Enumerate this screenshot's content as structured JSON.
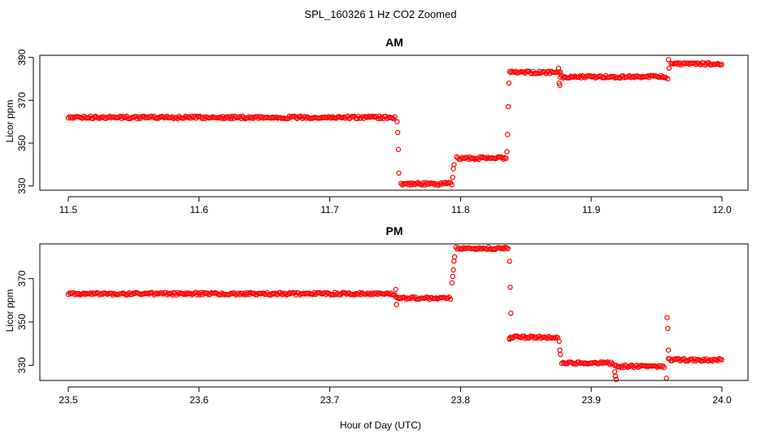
{
  "figure": {
    "title": "SPL_160326  1 Hz CO2 Zoomed",
    "xlabel": "Hour of Day (UTC)"
  },
  "chart_data": [
    {
      "type": "scatter",
      "title": "AM",
      "xlabel": "",
      "ylabel": "Licor ppm",
      "xlim": [
        11.5,
        12.0
      ],
      "ylim": [
        328,
        391
      ],
      "xticks": [
        "11.5",
        "11.6",
        "11.7",
        "11.8",
        "11.9",
        "12.0"
      ],
      "yticks": [
        "330",
        "350",
        "370",
        "390"
      ],
      "marker_color": "#ff0000",
      "grid": false,
      "series": [
        {
          "segments": [
            {
              "x": [
                11.5,
                11.7505
              ],
              "y": 362
            },
            {
              "x": [
                11.7545,
                11.7935
              ],
              "y": 331
            },
            {
              "x": [
                11.797,
                11.835
              ],
              "y": 343
            },
            {
              "x": [
                11.8375,
                11.877
              ],
              "y": 383
            },
            {
              "x": [
                11.8765,
                11.958
              ],
              "y": 381
            },
            {
              "x": [
                11.961,
                12.0
              ],
              "y": 387
            }
          ],
          "points": [
            {
              "x": 11.7515,
              "y": 360
            },
            {
              "x": 11.752,
              "y": 355
            },
            {
              "x": 11.7525,
              "y": 347
            },
            {
              "x": 11.7528,
              "y": 336
            },
            {
              "x": 11.794,
              "y": 334
            },
            {
              "x": 11.7945,
              "y": 338
            },
            {
              "x": 11.795,
              "y": 340
            },
            {
              "x": 11.8355,
              "y": 346
            },
            {
              "x": 11.836,
              "y": 354
            },
            {
              "x": 11.8365,
              "y": 367
            },
            {
              "x": 11.837,
              "y": 378
            },
            {
              "x": 11.875,
              "y": 385
            },
            {
              "x": 11.8755,
              "y": 378
            },
            {
              "x": 11.876,
              "y": 377
            },
            {
              "x": 11.959,
              "y": 389
            },
            {
              "x": 11.9595,
              "y": 385
            },
            {
              "x": 11.9585,
              "y": 380
            }
          ]
        }
      ]
    },
    {
      "type": "scatter",
      "title": "PM",
      "xlabel": "",
      "ylabel": "Licor ppm",
      "xlim": [
        23.5,
        24.0
      ],
      "ylim": [
        323,
        386
      ],
      "xticks": [
        "23.5",
        "23.6",
        "23.7",
        "23.8",
        "23.9",
        "24.0"
      ],
      "yticks": [
        "330",
        "350",
        "370"
      ],
      "marker_color": "#ff0000",
      "grid": false,
      "series": [
        {
          "segments": [
            {
              "x": [
                23.5,
                23.75
              ],
              "y": 363
            },
            {
              "x": [
                23.7505,
                23.7925
              ],
              "y": 361
            },
            {
              "x": [
                23.7965,
                23.8365
              ],
              "y": 384
            },
            {
              "x": [
                23.8375,
                23.8745
              ],
              "y": 343
            },
            {
              "x": [
                23.8775,
                23.917
              ],
              "y": 331
            },
            {
              "x": [
                23.918,
                23.956
              ],
              "y": 329.5
            },
            {
              "x": [
                23.959,
                24.0
              ],
              "y": 332.5
            }
          ],
          "points": [
            {
              "x": 23.7505,
              "y": 365
            },
            {
              "x": 23.751,
              "y": 358
            },
            {
              "x": 23.7935,
              "y": 368
            },
            {
              "x": 23.794,
              "y": 371
            },
            {
              "x": 23.7945,
              "y": 374
            },
            {
              "x": 23.795,
              "y": 378
            },
            {
              "x": 23.7955,
              "y": 380
            },
            {
              "x": 23.8375,
              "y": 378
            },
            {
              "x": 23.838,
              "y": 366
            },
            {
              "x": 23.8385,
              "y": 354
            },
            {
              "x": 23.8375,
              "y": 342
            },
            {
              "x": 23.8755,
              "y": 341
            },
            {
              "x": 23.876,
              "y": 337
            },
            {
              "x": 23.8765,
              "y": 335
            },
            {
              "x": 23.918,
              "y": 327
            },
            {
              "x": 23.9185,
              "y": 325
            },
            {
              "x": 23.919,
              "y": 323.5
            },
            {
              "x": 23.958,
              "y": 352
            },
            {
              "x": 23.9585,
              "y": 347
            },
            {
              "x": 23.959,
              "y": 337
            },
            {
              "x": 23.9575,
              "y": 324
            }
          ]
        }
      ]
    }
  ]
}
